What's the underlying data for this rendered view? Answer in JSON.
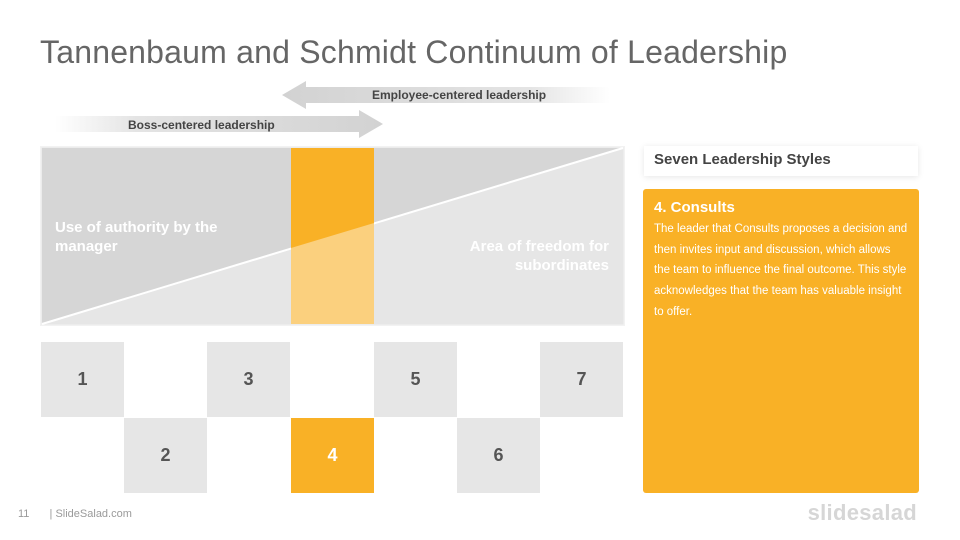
{
  "slide": {
    "title": "Tannenbaum and Schmidt Continuum of Leadership",
    "page_number": "11",
    "footer": "| SlideSalad.com",
    "brand": "slidesalad"
  },
  "arrows": {
    "employee": "Employee-centered  leadership",
    "boss": "Boss-centered leadership"
  },
  "chart": {
    "left_label": "Use of authority by the manager",
    "right_label": "Area of freedom for subordinates"
  },
  "steps": [
    {
      "label": "1",
      "active": false
    },
    {
      "label": "2",
      "active": false
    },
    {
      "label": "3",
      "active": false
    },
    {
      "label": "4",
      "active": true
    },
    {
      "label": "5",
      "active": false
    },
    {
      "label": "6",
      "active": false
    },
    {
      "label": "7",
      "active": false
    }
  ],
  "panel": {
    "heading": "Seven Leadership Styles",
    "style_title": "4. Consults",
    "description": "The leader that Consults proposes a decision and then invites input and discussion, which allows the team to influence the final outcome. This style acknowledges that the team has valuable insight to offer."
  },
  "colors": {
    "accent": "#f9b126",
    "accent_light": "#fbd07e",
    "gray_dark": "#d6d6d6",
    "gray_light": "#e6e6e6",
    "title": "#666666"
  }
}
